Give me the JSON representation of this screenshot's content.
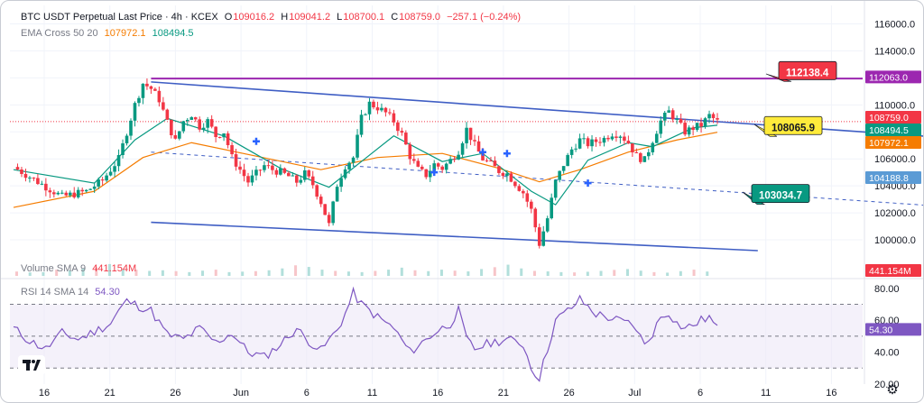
{
  "legend": {
    "symbol": "BTC USDT Perpetual Last Price · 4h · KCEX",
    "o_label": "O",
    "o_value": "109016.2",
    "h_label": "H",
    "h_value": "109041.2",
    "l_label": "L",
    "l_value": "108700.1",
    "c_label": "C",
    "c_value": "108759.0",
    "change": "−257.1 (−0.24%)",
    "ema_label": "EMA Cross 50 20",
    "ema_slow_value": "107972.1",
    "ema_fast_value": "108494.5",
    "volume_label": "Volume SMA 9",
    "volume_value": "441.154M",
    "rsi_label": "RSI 14 SMA 14",
    "rsi_value": "54.30"
  },
  "colors": {
    "up": "#089981",
    "down": "#f23645",
    "ema_fast": "#089981",
    "ema_slow": "#f57c00",
    "channel": "#3f5ec4",
    "resistance": "#9c27b0",
    "rsi_line": "#7e57c2",
    "rsi_band": "#ede7f6"
  },
  "icons": {
    "logo": "tradingview-logo-icon",
    "settings": "gear-icon"
  },
  "chart_data": [
    {
      "type": "candlestick",
      "title": "BTC USDT Perpetual Last Price · 4h · KCEX",
      "y_ticks": [
        "116000.0",
        "114000.0",
        "112000.0",
        "110000.0",
        "108000.0",
        "106000.0",
        "104000.0",
        "102000.0",
        "100000.0"
      ],
      "ylim": [
        99000,
        116500
      ],
      "x_ticks": [
        "16",
        "21",
        "26",
        "Jun",
        "6",
        "11",
        "16",
        "21",
        "26",
        "Jul",
        "6",
        "11",
        "16"
      ],
      "price_path": [
        [
          0,
          105400
        ],
        [
          3,
          104300
        ],
        [
          6,
          103200
        ],
        [
          9,
          103600
        ],
        [
          11,
          104400
        ],
        [
          13,
          106000
        ],
        [
          15,
          110000
        ],
        [
          16,
          111600
        ],
        [
          17,
          111200
        ],
        [
          18,
          110400
        ],
        [
          19,
          108700
        ],
        [
          20,
          107300
        ],
        [
          21,
          108800
        ],
        [
          22,
          109300
        ],
        [
          23,
          108400
        ],
        [
          24,
          108800
        ],
        [
          25,
          107700
        ],
        [
          26,
          108000
        ],
        [
          27,
          106100
        ],
        [
          28,
          105200
        ],
        [
          29,
          104300
        ],
        [
          30,
          104900
        ],
        [
          31,
          105500
        ],
        [
          32,
          105200
        ],
        [
          33,
          105000
        ],
        [
          34,
          104700
        ],
        [
          35,
          104300
        ],
        [
          36,
          104900
        ],
        [
          37,
          104100
        ],
        [
          38,
          102800
        ],
        [
          39,
          101100
        ],
        [
          40,
          104100
        ],
        [
          41,
          105500
        ],
        [
          42,
          106100
        ],
        [
          43,
          109000
        ],
        [
          44,
          110100
        ],
        [
          45,
          109800
        ],
        [
          46,
          109400
        ],
        [
          47,
          108800
        ],
        [
          48,
          107800
        ],
        [
          49,
          106200
        ],
        [
          50,
          105200
        ],
        [
          51,
          104800
        ],
        [
          52,
          105600
        ],
        [
          53,
          105300
        ],
        [
          54,
          105900
        ],
        [
          55,
          106600
        ],
        [
          56,
          108200
        ],
        [
          57,
          107000
        ],
        [
          58,
          106000
        ],
        [
          59,
          105600
        ],
        [
          60,
          105100
        ],
        [
          61,
          104900
        ],
        [
          62,
          104200
        ],
        [
          63,
          103500
        ],
        [
          64,
          102200
        ],
        [
          65,
          99700
        ],
        [
          66,
          101600
        ],
        [
          67,
          104300
        ],
        [
          68,
          105600
        ],
        [
          69,
          106700
        ],
        [
          70,
          107400
        ],
        [
          71,
          107100
        ],
        [
          72,
          107300
        ],
        [
          73,
          107500
        ],
        [
          74,
          107900
        ],
        [
          75,
          107800
        ],
        [
          76,
          107200
        ],
        [
          77,
          106200
        ],
        [
          78,
          105900
        ],
        [
          79,
          107400
        ],
        [
          80,
          108800
        ],
        [
          81,
          109500
        ],
        [
          82,
          108800
        ],
        [
          83,
          108000
        ],
        [
          84,
          108300
        ],
        [
          85,
          108500
        ],
        [
          86,
          109200
        ],
        [
          87,
          108759
        ]
      ],
      "ema_fast": [
        [
          0,
          105200
        ],
        [
          10,
          104200
        ],
        [
          15,
          107400
        ],
        [
          19,
          109000
        ],
        [
          26,
          107700
        ],
        [
          33,
          105300
        ],
        [
          39,
          103900
        ],
        [
          43,
          105800
        ],
        [
          47,
          107700
        ],
        [
          53,
          105800
        ],
        [
          58,
          106400
        ],
        [
          64,
          103600
        ],
        [
          67,
          102600
        ],
        [
          71,
          105900
        ],
        [
          76,
          107200
        ],
        [
          79,
          106900
        ],
        [
          84,
          108300
        ],
        [
          87,
          108494.5
        ]
      ],
      "ema_slow": [
        [
          0,
          102400
        ],
        [
          10,
          103600
        ],
        [
          16,
          106100
        ],
        [
          22,
          107200
        ],
        [
          30,
          106200
        ],
        [
          38,
          105200
        ],
        [
          45,
          106100
        ],
        [
          53,
          106400
        ],
        [
          60,
          105300
        ],
        [
          65,
          104300
        ],
        [
          70,
          105200
        ],
        [
          76,
          106500
        ],
        [
          82,
          107400
        ],
        [
          87,
          107972.1
        ]
      ],
      "channel_upper": {
        "from": [
          17,
          111700
        ],
        "to": [
          124,
          107200
        ]
      },
      "channel_lower": {
        "from": [
          17,
          101300
        ],
        "to": [
          92,
          99200
        ]
      },
      "channel_mid": {
        "from": [
          17,
          106500
        ],
        "to": [
          124,
          102100
        ]
      },
      "resistance": {
        "from": [
          17,
          111950
        ],
        "to": [
          140,
          111950
        ]
      },
      "trend_markers": [
        [
          30,
          107300
        ],
        [
          52,
          105000
        ],
        [
          58,
          106500
        ],
        [
          61,
          106400
        ],
        [
          71,
          104200
        ]
      ],
      "annotations": [
        {
          "text": "112138.4",
          "price": 112138.4,
          "color": "#f23645",
          "text_color": "#ffffff"
        },
        {
          "text": "108065.9",
          "price": 108065.9,
          "color": "#ffeb3b",
          "text_color": "#131722"
        },
        {
          "text": "103034.7",
          "price": 103034.7,
          "color": "#089981",
          "text_color": "#ffffff"
        }
      ],
      "price_labels": [
        {
          "text": "112063.0",
          "color": "#9c27b0"
        },
        {
          "text": "108759.0",
          "color": "#f23645"
        },
        {
          "text": "108494.5",
          "color": "#089981"
        },
        {
          "text": "107972.1",
          "color": "#f57c00"
        },
        {
          "text": "104188.8",
          "color": "#5b9bd5"
        }
      ]
    },
    {
      "type": "bar",
      "title": "Volume SMA 9",
      "value_label": "441.154M",
      "values_relative": [
        0.35,
        0.28,
        0.3,
        0.5,
        0.45,
        0.62,
        0.7,
        0.95,
        0.55,
        0.5,
        0.4,
        0.45,
        0.38,
        0.3,
        0.42,
        0.5,
        0.3,
        0.34,
        0.38,
        0.45,
        0.6,
        0.85,
        0.72,
        0.5,
        0.4,
        0.35,
        0.3,
        0.4,
        0.5,
        0.66,
        0.45,
        0.38,
        0.5,
        0.42,
        0.36,
        0.55,
        0.7,
        0.9,
        0.6,
        0.4,
        0.36,
        0.3,
        0.28,
        0.33,
        0.4,
        0.48,
        0.55,
        0.42,
        0.3,
        0.26,
        0.38,
        0.5,
        0.35
      ]
    },
    {
      "type": "line",
      "title": "RSI 14 SMA 14",
      "value_label": "54.30",
      "y_ticks": [
        "80.00",
        "60.00",
        "40.00",
        "20.00"
      ],
      "ylim": [
        20,
        85
      ],
      "band": [
        30,
        70
      ],
      "rsi_path": [
        [
          0,
          55
        ],
        [
          2,
          47
        ],
        [
          4,
          42
        ],
        [
          6,
          52
        ],
        [
          8,
          48
        ],
        [
          10,
          53
        ],
        [
          12,
          58
        ],
        [
          13,
          66
        ],
        [
          14,
          72
        ],
        [
          15,
          70
        ],
        [
          17,
          66
        ],
        [
          19,
          51
        ],
        [
          21,
          48
        ],
        [
          23,
          55
        ],
        [
          25,
          46
        ],
        [
          27,
          52
        ],
        [
          29,
          40
        ],
        [
          31,
          37
        ],
        [
          33,
          45
        ],
        [
          35,
          55
        ],
        [
          36,
          49
        ],
        [
          38,
          41
        ],
        [
          40,
          54
        ],
        [
          41,
          64
        ],
        [
          42,
          77
        ],
        [
          43,
          70
        ],
        [
          45,
          62
        ],
        [
          47,
          55
        ],
        [
          49,
          40
        ],
        [
          51,
          48
        ],
        [
          52,
          52
        ],
        [
          54,
          58
        ],
        [
          55,
          66
        ],
        [
          56,
          48
        ],
        [
          57,
          42
        ],
        [
          59,
          46
        ],
        [
          61,
          48
        ],
        [
          63,
          45
        ],
        [
          64,
          30
        ],
        [
          65,
          24
        ],
        [
          66,
          42
        ],
        [
          67,
          60
        ],
        [
          69,
          68
        ],
        [
          70,
          73
        ],
        [
          72,
          64
        ],
        [
          74,
          61
        ],
        [
          76,
          58
        ],
        [
          77,
          55
        ],
        [
          78,
          44
        ],
        [
          79,
          52
        ],
        [
          80,
          62
        ],
        [
          81,
          65
        ],
        [
          82,
          58
        ],
        [
          83,
          55
        ],
        [
          84,
          57
        ],
        [
          85,
          60
        ],
        [
          86,
          62
        ],
        [
          87,
          54.3
        ]
      ]
    }
  ]
}
